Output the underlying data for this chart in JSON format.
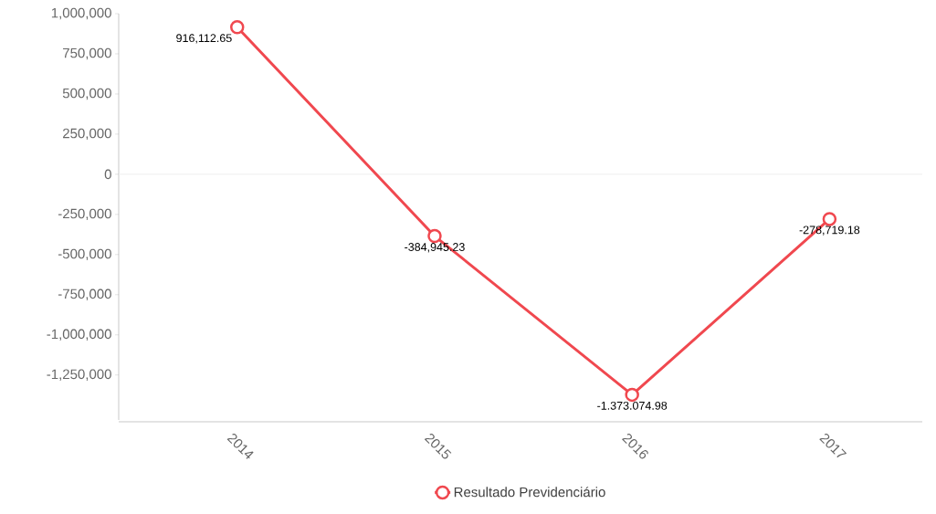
{
  "chart_data": {
    "type": "line",
    "categories": [
      "2014",
      "2015",
      "2016",
      "2017"
    ],
    "series": [
      {
        "name": "Resultado Previdenciário",
        "color": "#f0484f",
        "values": [
          916112.65,
          -384945.23,
          -1373074.98,
          -278719.18
        ],
        "value_labels": [
          "916,112.65",
          "-384,945.23",
          "-1.373.074.98",
          "-278,719.18"
        ]
      }
    ],
    "ylim": [
      -1530000,
      1000000
    ],
    "yticks": [
      {
        "value": 1000000,
        "label": "1,000,000"
      },
      {
        "value": 750000,
        "label": "750,000"
      },
      {
        "value": 500000,
        "label": "500,000"
      },
      {
        "value": 250000,
        "label": "250,000"
      },
      0,
      {
        "value": -250000,
        "label": "-250,000"
      },
      {
        "value": -500000,
        "label": "-500,000"
      },
      {
        "value": -750000,
        "label": "-750,000"
      },
      {
        "value": -1000000,
        "label": "-1,000,000"
      },
      {
        "value": -1250000,
        "label": "-1,250,000"
      }
    ],
    "ref_lines": [
      {
        "axis": "y",
        "value": 0,
        "color": "#eeeeee"
      }
    ],
    "marker": "circle",
    "line_style": "solid",
    "legend": "bottom"
  }
}
